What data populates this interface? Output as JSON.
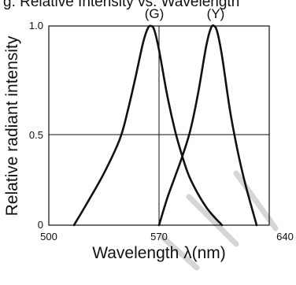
{
  "title_fragment": "g. Relative Intensity vs. Wavelength",
  "chart_data": {
    "type": "line",
    "title": "",
    "xlabel": "Wavelength λ(nm)",
    "ylabel": "Relative radiant intensity",
    "xlim": [
      500,
      640
    ],
    "ylim": [
      0,
      1.0
    ],
    "xticks": [
      "500",
      "570",
      "640"
    ],
    "yticks": [
      "0",
      "0.5",
      "1.0"
    ],
    "grid": true,
    "series": [
      {
        "name": "(G)",
        "peak_label": "(G)",
        "x": [
          516,
          525,
          535,
          545,
          550,
          555,
          560,
          563,
          565,
          567,
          570,
          575,
          580,
          585,
          590,
          600,
          610
        ],
        "values": [
          0.0,
          0.12,
          0.26,
          0.43,
          0.57,
          0.74,
          0.92,
          0.99,
          1.0,
          0.98,
          0.88,
          0.66,
          0.48,
          0.34,
          0.23,
          0.09,
          0.0
        ]
      },
      {
        "name": "(Y)",
        "peak_label": "(Y)",
        "x": [
          570,
          575,
          580,
          585,
          590,
          595,
          600,
          603,
          605,
          607,
          610,
          615,
          620,
          625,
          632
        ],
        "values": [
          0.0,
          0.13,
          0.24,
          0.35,
          0.48,
          0.67,
          0.9,
          0.99,
          1.0,
          0.97,
          0.85,
          0.58,
          0.37,
          0.2,
          0.0
        ]
      }
    ]
  }
}
